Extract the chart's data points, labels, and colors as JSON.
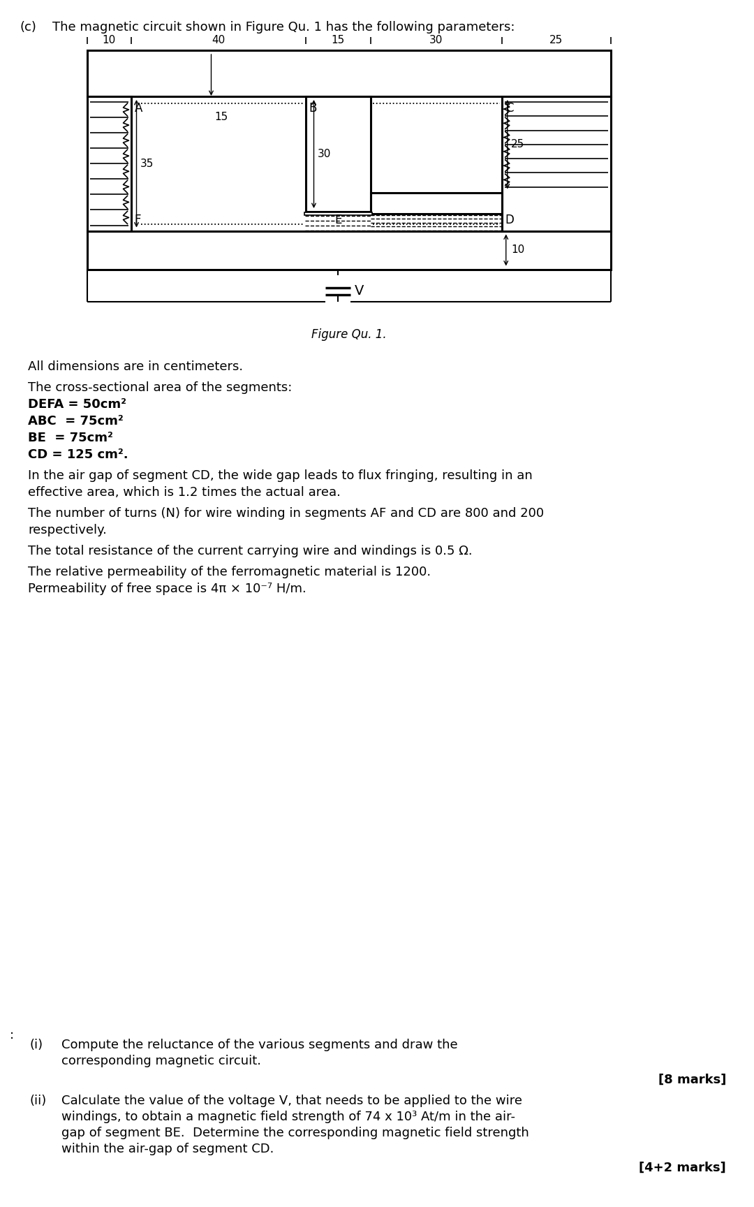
{
  "title_label": "(c)",
  "title_text": "The magnetic circuit shown in Figure Qu. 1 has the following parameters:",
  "figure_caption": "Figure Qu. 1.",
  "dimensions_note": "All dimensions are in centimeters.",
  "cross_section_header": "The cross-sectional area of the segments:",
  "cross_sections": [
    "DEFA = 50cm²",
    "ABC  = 75cm²",
    "BE  = 75cm²",
    "CD = 125 cm²."
  ],
  "fringing_text": "In the air gap of segment CD, the wide gap leads to flux fringing, resulting in an effective area, which is 1.2 times the actual area.",
  "turns_text": "The number of turns (N) for wire winding in segments AF and CD are 800 and 200 respectively.",
  "resistance_text": "The total resistance of the current carrying wire and windings is 0.5 Ω.",
  "permeability_line1": "The relative permeability of the ferromagnetic material is 1200.",
  "permeability_line2": "Permeability of free space is 4π × 10⁻⁷ H/m.",
  "sub_i_label": "(i)",
  "sub_i_line1": "Compute the reluctance of the various segments and draw the",
  "sub_i_line2": "corresponding magnetic circuit.",
  "sub_i_marks": "[8 marks]",
  "sub_ii_label": "(ii)",
  "sub_ii_line1": "Calculate the value of the voltage V, that needs to be applied to the wire",
  "sub_ii_line2": "windings, to obtain a magnetic field strength of 74 x 10³ At/m in the air-",
  "sub_ii_line3": "gap of segment BE.  Determine the corresponding magnetic field strength",
  "sub_ii_line4": "within the air-gap of segment CD.",
  "sub_ii_marks": "[4+2 marks]",
  "bg_color": "#ffffff",
  "dim_labels_top": [
    "10",
    "40",
    "15",
    "30",
    "25"
  ],
  "corner_labels": [
    "A",
    "B",
    "C",
    "F",
    "E",
    "D"
  ],
  "voltage_label": "V",
  "label_15": "15",
  "label_35": "35",
  "label_30": "30",
  "label_25_side": "25",
  "label_10_bottom": "10"
}
